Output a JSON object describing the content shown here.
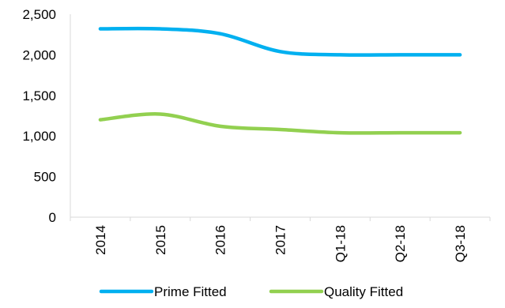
{
  "chart_data": {
    "type": "line",
    "title": "",
    "xlabel": "",
    "ylabel": "",
    "categories": [
      "2014",
      "2015",
      "2016",
      "2017",
      "Q1-18",
      "Q2-18",
      "Q3-18"
    ],
    "ylim": [
      0,
      2500
    ],
    "yticks": [
      0,
      500,
      1000,
      1500,
      2000,
      2500
    ],
    "ytick_labels": [
      "0",
      "500",
      "1,000",
      "1,500",
      "2,000",
      "2,500"
    ],
    "smooth": true,
    "grid": false,
    "legend_position": "bottom",
    "series": [
      {
        "name": "Prime Fitted",
        "color": "#00B0F0",
        "values": [
          2320,
          2320,
          2260,
          2040,
          2000,
          2000,
          2000
        ]
      },
      {
        "name": "Quality Fitted",
        "color": "#92D050",
        "values": [
          1200,
          1270,
          1120,
          1080,
          1040,
          1040,
          1040
        ]
      }
    ]
  }
}
